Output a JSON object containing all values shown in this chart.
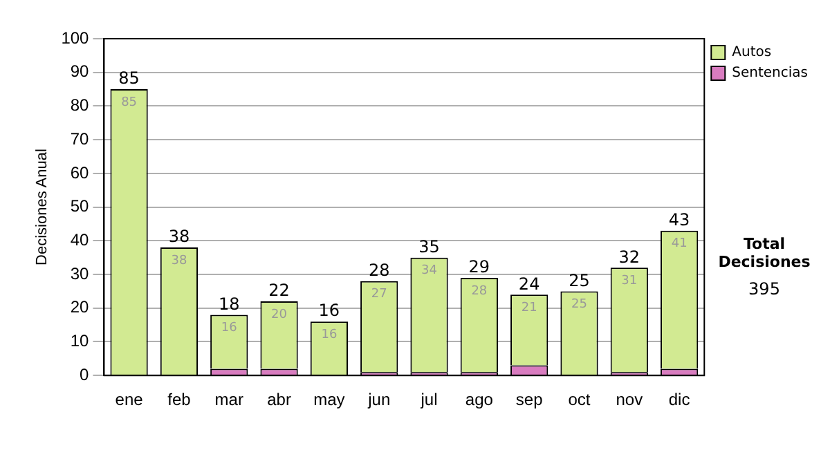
{
  "chart_data": {
    "type": "bar",
    "stacked": true,
    "ylabel": "Decisiones Anual",
    "categories": [
      "ene",
      "feb",
      "mar",
      "abr",
      "may",
      "jun",
      "jul",
      "ago",
      "sep",
      "oct",
      "nov",
      "dic"
    ],
    "series": [
      {
        "name": "Sentencias",
        "color": "#d97cc0",
        "values": [
          0,
          0,
          2,
          2,
          0,
          1,
          1,
          1,
          3,
          0,
          1,
          2
        ]
      },
      {
        "name": "Autos",
        "color": "#d2ea92",
        "values": [
          85,
          38,
          16,
          20,
          16,
          27,
          34,
          28,
          21,
          25,
          31,
          41
        ],
        "value_labels": [
          "85",
          "38",
          "16",
          "20",
          "16",
          "27",
          "34",
          "28",
          "21",
          "25",
          "31",
          "41"
        ]
      }
    ],
    "totals": [
      "85",
      "38",
      "18",
      "22",
      "16",
      "28",
      "35",
      "29",
      "24",
      "25",
      "32",
      "43"
    ],
    "ylim": [
      0,
      100
    ],
    "yticks": [
      0,
      10,
      20,
      30,
      40,
      50,
      60,
      70,
      80,
      90,
      100
    ],
    "grid": "y",
    "legend": "right",
    "annotations": [
      "Total Decisiones",
      "395"
    ]
  }
}
